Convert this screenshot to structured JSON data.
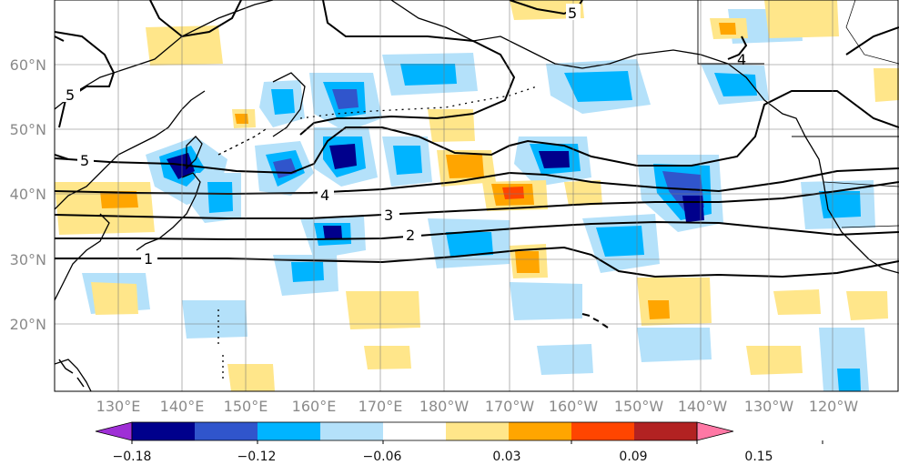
{
  "map": {
    "lon_labels": [
      "130°E",
      "140°E",
      "150°E",
      "160°E",
      "170°E",
      "180°W",
      "170°W",
      "160°W",
      "150°W",
      "140°W",
      "130°W",
      "120°W"
    ],
    "lat_labels": [
      "60°N",
      "50°N",
      "40°N",
      "30°N",
      "20°N"
    ],
    "contour_labels": [
      "5",
      "5",
      "5",
      "4",
      "4",
      "3",
      "2",
      "1"
    ]
  },
  "colorbar": {
    "colors": [
      "#9f2fd6",
      "#00008c",
      "#3055cc",
      "#00b4ff",
      "#b4e1fa",
      "#ffffff",
      "#ffe68a",
      "#ffa500",
      "#ff4500",
      "#b22222",
      "#ff78a5"
    ],
    "tick_labels": [
      "−0.18",
      "−0.12",
      "−0.06",
      "0.03",
      "0.09",
      "0.15"
    ]
  }
}
